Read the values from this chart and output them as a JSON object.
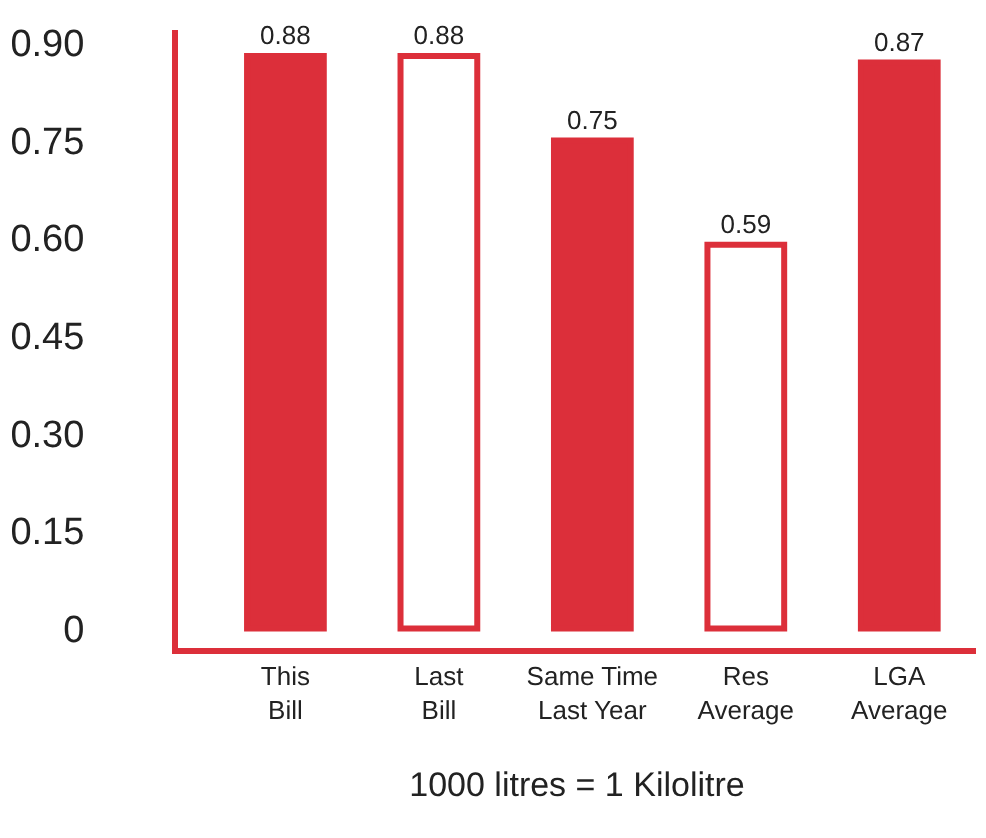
{
  "chart_data": {
    "type": "bar",
    "categories": [
      "This Bill",
      "Last Bill",
      "Same Time Last Year",
      "Res Average",
      "LGA Average"
    ],
    "series": [
      {
        "color": "#dc2f3a",
        "colors": [
          "#dc2f3a",
          "#ffffff",
          "#dc2f3a",
          "#ffffff",
          "#dc2f3a"
        ],
        "values": [
          0.88,
          0.88,
          0.75,
          0.59,
          0.87
        ]
      }
    ],
    "xlabel": "1000 litres = 1 Kilolitre",
    "ylim": [
      -0.03,
      0.92
    ],
    "yticks": [
      {
        "value": 0,
        "label": "0"
      },
      {
        "value": 0.15,
        "label": "0.15"
      },
      {
        "value": 0.3,
        "label": "0.30"
      },
      {
        "value": 0.45,
        "label": "0.45"
      },
      {
        "value": 0.6,
        "label": "0.60"
      },
      {
        "value": 0.75,
        "label": "0.75"
      },
      {
        "value": 0.9,
        "label": "0.90"
      }
    ],
    "data_labels": true
  }
}
